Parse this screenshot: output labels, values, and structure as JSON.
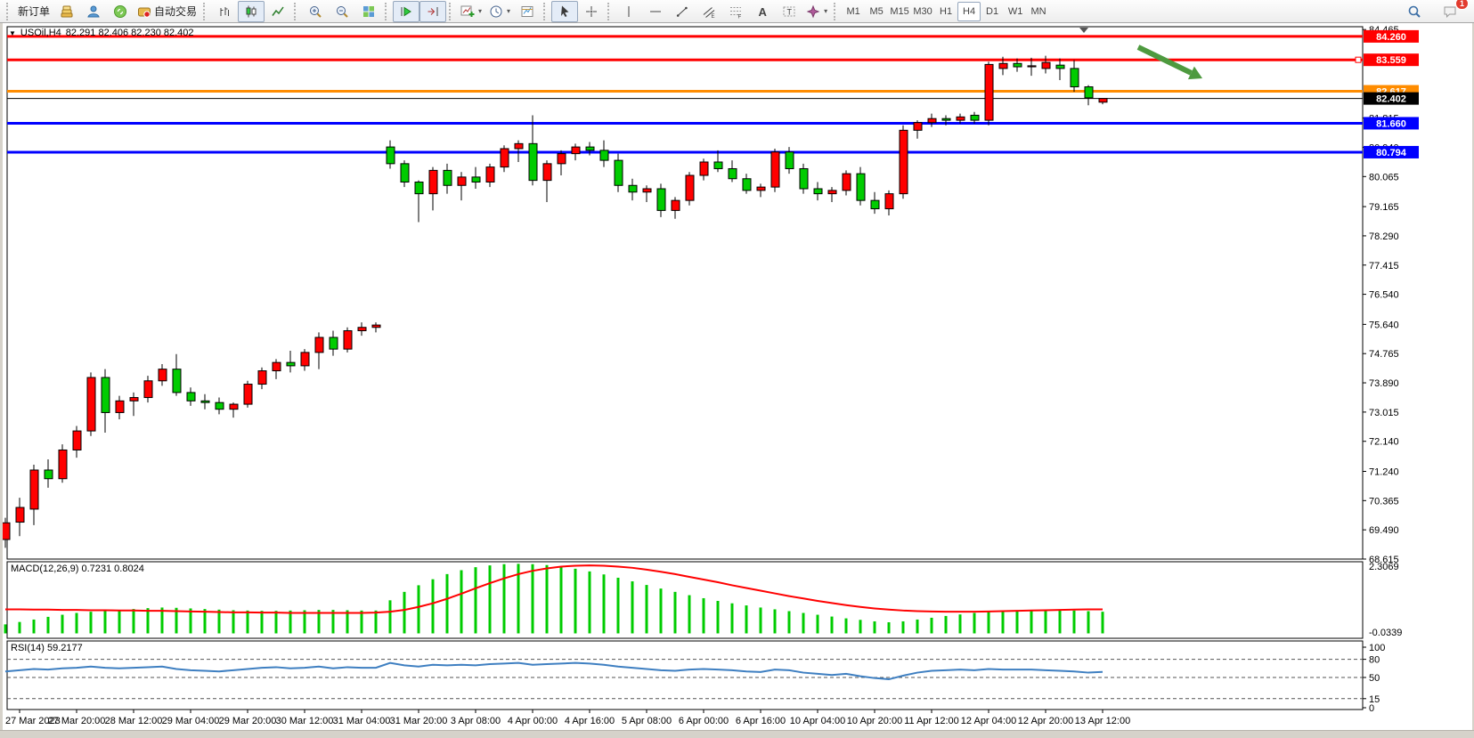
{
  "toolbar": {
    "groups": [
      {
        "items": [
          {
            "name": "new-order-button",
            "label": "新订单"
          },
          {
            "name": "gold-icon-button",
            "icon": "gold"
          },
          {
            "name": "community-button",
            "icon": "community"
          },
          {
            "name": "sounds-button",
            "icon": "sounds"
          },
          {
            "name": "auto-trading-button",
            "icon": "auto-trading",
            "label": "自动交易"
          }
        ]
      },
      {
        "items": [
          {
            "name": "bar-chart-button",
            "icon": "bar-chart"
          },
          {
            "name": "candlestick-chart-button",
            "icon": "candlestick",
            "active": true
          },
          {
            "name": "line-chart-button",
            "icon": "line-chart"
          }
        ]
      },
      {
        "items": [
          {
            "name": "zoom-in-button",
            "icon": "zoom-in"
          },
          {
            "name": "zoom-out-button",
            "icon": "zoom-out"
          },
          {
            "name": "tile-windows-button",
            "icon": "tile"
          }
        ]
      },
      {
        "items": [
          {
            "name": "auto-scroll-button",
            "icon": "auto-scroll",
            "active": true
          },
          {
            "name": "chart-shift-button",
            "icon": "chart-shift",
            "active": true
          }
        ]
      },
      {
        "items": [
          {
            "name": "indicators-button",
            "icon": "indicators",
            "caret": true
          },
          {
            "name": "periods-button",
            "icon": "periods",
            "caret": true
          },
          {
            "name": "templates-button",
            "icon": "template"
          }
        ]
      },
      {
        "items": [
          {
            "name": "cursor-button",
            "icon": "cursor",
            "active": true
          },
          {
            "name": "crosshair-button",
            "icon": "crosshair"
          }
        ]
      },
      {
        "items": [
          {
            "name": "vertical-line-button",
            "icon": "vline"
          },
          {
            "name": "horizontal-line-button",
            "icon": "hline"
          },
          {
            "name": "trendline-button",
            "icon": "trendline"
          },
          {
            "name": "channel-button",
            "icon": "channel"
          },
          {
            "name": "fibonacci-button",
            "icon": "fibo"
          },
          {
            "name": "text-button",
            "icon": "text"
          },
          {
            "name": "label-button",
            "icon": "label"
          },
          {
            "name": "arrows-button",
            "icon": "arrows",
            "caret": true
          }
        ]
      }
    ],
    "timeframes": [
      {
        "label": "M1"
      },
      {
        "label": "M5"
      },
      {
        "label": "M15"
      },
      {
        "label": "M30"
      },
      {
        "label": "H1"
      },
      {
        "label": "H4",
        "active": true
      },
      {
        "label": "D1"
      },
      {
        "label": "W1"
      },
      {
        "label": "MN"
      }
    ],
    "search_icon": "search",
    "notification_count": "1"
  },
  "chart": {
    "title_symbol": "USOil,H4",
    "title_ohlc": "82.291 82.406 82.230 82.402"
  },
  "chart_data": {
    "type": "candlestick",
    "symbol": "USOil",
    "period": "H4",
    "ohlc_display": {
      "open": "82.291",
      "high": "82.406",
      "low": "82.230",
      "close": "82.402"
    },
    "bull_color": "#FF0000",
    "bear_color": "#00CC00",
    "candle_outline": "#000000",
    "y_axis": {
      "visible_range": [
        68.615,
        84.55
      ],
      "ticks": [
        "84.465",
        "81.815",
        "80.940",
        "80.065",
        "79.165",
        "78.290",
        "77.415",
        "76.540",
        "75.640",
        "74.765",
        "73.890",
        "73.015",
        "72.140",
        "71.240",
        "70.365",
        "69.490",
        "68.615"
      ]
    },
    "x_axis": {
      "labels": [
        "27 Mar 2023",
        "27 Mar 20:00",
        "28 Mar 12:00",
        "29 Mar 04:00",
        "29 Mar 20:00",
        "30 Mar 12:00",
        "31 Mar 04:00",
        "31 Mar 20:00",
        "3 Apr 08:00",
        "4 Apr 00:00",
        "4 Apr 16:00",
        "5 Apr 08:00",
        "6 Apr 00:00",
        "6 Apr 16:00",
        "10 Apr 04:00",
        "10 Apr 20:00",
        "11 Apr 12:00",
        "12 Apr 04:00",
        "12 Apr 20:00",
        "13 Apr 12:00"
      ]
    },
    "levels": [
      {
        "price": 84.26,
        "color": "#FF0000",
        "width": 3
      },
      {
        "price": 83.559,
        "color": "#FF0000",
        "width": 3,
        "handle": true
      },
      {
        "price": 82.617,
        "color": "#FF8C00",
        "width": 3
      },
      {
        "price": 81.66,
        "color": "#0000FF",
        "width": 3
      },
      {
        "price": 80.794,
        "color": "#0000FF",
        "width": 3
      }
    ],
    "current_price": {
      "value": 82.402,
      "color": "#000000"
    },
    "candles": [
      [
        69.2,
        69.85,
        68.95,
        69.7
      ],
      [
        69.72,
        70.45,
        69.3,
        70.16
      ],
      [
        70.11,
        71.44,
        69.63,
        71.28
      ],
      [
        71.28,
        71.6,
        70.75,
        71.02
      ],
      [
        71.02,
        72.05,
        70.9,
        71.88
      ],
      [
        71.88,
        72.6,
        71.65,
        72.45
      ],
      [
        72.45,
        74.2,
        72.3,
        74.05
      ],
      [
        74.05,
        74.3,
        72.4,
        73.0
      ],
      [
        73.0,
        73.5,
        72.8,
        73.35
      ],
      [
        73.35,
        73.6,
        72.9,
        73.45
      ],
      [
        73.45,
        74.1,
        73.3,
        73.95
      ],
      [
        73.95,
        74.45,
        73.8,
        74.3
      ],
      [
        74.3,
        74.75,
        73.5,
        73.6
      ],
      [
        73.6,
        73.75,
        73.2,
        73.35
      ],
      [
        73.35,
        73.55,
        73.1,
        73.3
      ],
      [
        73.3,
        73.45,
        72.95,
        73.1
      ],
      [
        73.1,
        73.3,
        72.85,
        73.25
      ],
      [
        73.25,
        73.95,
        73.15,
        73.85
      ],
      [
        73.85,
        74.35,
        73.7,
        74.25
      ],
      [
        74.25,
        74.6,
        74.0,
        74.5
      ],
      [
        74.5,
        74.85,
        74.2,
        74.4
      ],
      [
        74.4,
        74.9,
        74.25,
        74.8
      ],
      [
        74.8,
        75.4,
        74.3,
        75.25
      ],
      [
        75.25,
        75.45,
        74.7,
        74.9
      ],
      [
        74.9,
        75.55,
        74.8,
        75.45
      ],
      [
        75.45,
        75.7,
        75.3,
        75.55
      ],
      [
        75.55,
        75.7,
        75.4,
        75.62
      ],
      [
        80.95,
        81.15,
        80.3,
        80.45
      ],
      [
        80.45,
        80.55,
        79.75,
        79.9
      ],
      [
        79.9,
        79.95,
        78.7,
        79.55
      ],
      [
        79.55,
        80.35,
        79.05,
        80.25
      ],
      [
        80.25,
        80.45,
        79.55,
        79.8
      ],
      [
        79.8,
        80.2,
        79.35,
        80.05
      ],
      [
        80.05,
        80.35,
        79.7,
        79.9
      ],
      [
        79.9,
        80.45,
        79.75,
        80.35
      ],
      [
        80.35,
        81.0,
        80.2,
        80.9
      ],
      [
        80.9,
        81.15,
        80.5,
        81.05
      ],
      [
        81.05,
        81.9,
        79.8,
        79.95
      ],
      [
        79.95,
        80.55,
        79.3,
        80.45
      ],
      [
        80.45,
        80.85,
        80.1,
        80.75
      ],
      [
        80.75,
        81.05,
        80.55,
        80.95
      ],
      [
        80.95,
        81.1,
        80.7,
        80.85
      ],
      [
        80.85,
        81.15,
        80.35,
        80.55
      ],
      [
        80.55,
        80.75,
        79.6,
        79.8
      ],
      [
        79.8,
        80.0,
        79.35,
        79.6
      ],
      [
        79.6,
        79.8,
        79.3,
        79.7
      ],
      [
        79.7,
        79.85,
        78.85,
        79.05
      ],
      [
        79.05,
        79.45,
        78.8,
        79.35
      ],
      [
        79.35,
        80.2,
        79.2,
        80.1
      ],
      [
        80.1,
        80.6,
        79.95,
        80.5
      ],
      [
        80.5,
        80.85,
        80.2,
        80.3
      ],
      [
        80.3,
        80.55,
        79.9,
        80.0
      ],
      [
        80.0,
        80.15,
        79.55,
        79.65
      ],
      [
        79.65,
        79.85,
        79.45,
        79.75
      ],
      [
        79.75,
        80.9,
        79.6,
        80.8
      ],
      [
        80.8,
        80.95,
        80.15,
        80.3
      ],
      [
        80.3,
        80.45,
        79.55,
        79.7
      ],
      [
        79.7,
        79.9,
        79.35,
        79.55
      ],
      [
        79.55,
        79.75,
        79.3,
        79.65
      ],
      [
        79.65,
        80.25,
        79.5,
        80.15
      ],
      [
        80.15,
        80.35,
        79.2,
        79.35
      ],
      [
        79.35,
        79.6,
        78.95,
        79.1
      ],
      [
        79.1,
        79.65,
        78.9,
        79.55
      ],
      [
        79.55,
        81.6,
        79.4,
        81.45
      ],
      [
        81.45,
        81.75,
        81.2,
        81.68
      ],
      [
        81.68,
        81.95,
        81.55,
        81.8
      ],
      [
        81.8,
        81.9,
        81.6,
        81.75
      ],
      [
        81.75,
        81.95,
        81.65,
        81.85
      ],
      [
        81.9,
        82.0,
        81.65,
        81.75
      ],
      [
        81.75,
        83.5,
        81.6,
        83.42
      ],
      [
        83.3,
        83.65,
        83.1,
        83.45
      ],
      [
        83.45,
        83.6,
        83.2,
        83.35
      ],
      [
        83.35,
        83.62,
        83.08,
        83.38
      ],
      [
        83.3,
        83.68,
        83.15,
        83.48
      ],
      [
        83.4,
        83.6,
        82.95,
        83.3
      ],
      [
        83.3,
        83.55,
        82.6,
        82.75
      ],
      [
        82.75,
        82.8,
        82.2,
        82.42
      ],
      [
        82.291,
        82.406,
        82.23,
        82.402
      ]
    ],
    "indicators": {
      "macd": {
        "label": "MACD(12,26,9)",
        "values_text": "0.7231 0.8024",
        "scale_max": 2.3069,
        "scale_min": -0.0339,
        "histogram_color": "#00CC00",
        "signal_color": "#FF0000",
        "histogram": [
          0.3,
          0.38,
          0.46,
          0.55,
          0.62,
          0.68,
          0.72,
          0.75,
          0.78,
          0.81,
          0.84,
          0.86,
          0.85,
          0.83,
          0.81,
          0.79,
          0.77,
          0.76,
          0.75,
          0.75,
          0.76,
          0.77,
          0.78,
          0.78,
          0.77,
          0.76,
          0.76,
          1.1,
          1.38,
          1.6,
          1.8,
          1.97,
          2.1,
          2.2,
          2.26,
          2.3,
          2.31,
          2.3,
          2.27,
          2.22,
          2.15,
          2.06,
          1.96,
          1.85,
          1.73,
          1.61,
          1.49,
          1.38,
          1.27,
          1.17,
          1.08,
          1.0,
          0.93,
          0.86,
          0.8,
          0.74,
          0.68,
          0.62,
          0.56,
          0.5,
          0.45,
          0.4,
          0.37,
          0.4,
          0.46,
          0.52,
          0.58,
          0.63,
          0.68,
          0.72,
          0.75,
          0.77,
          0.78,
          0.78,
          0.77,
          0.76,
          0.74,
          0.72
        ],
        "signal": [
          0.8,
          0.8,
          0.79,
          0.79,
          0.78,
          0.78,
          0.77,
          0.77,
          0.76,
          0.76,
          0.75,
          0.75,
          0.74,
          0.73,
          0.72,
          0.71,
          0.7,
          0.7,
          0.69,
          0.69,
          0.68,
          0.68,
          0.68,
          0.68,
          0.68,
          0.68,
          0.69,
          0.72,
          0.78,
          0.88,
          1.0,
          1.15,
          1.32,
          1.5,
          1.67,
          1.83,
          1.97,
          2.08,
          2.16,
          2.22,
          2.25,
          2.26,
          2.25,
          2.22,
          2.18,
          2.12,
          2.05,
          1.97,
          1.88,
          1.79,
          1.7,
          1.6,
          1.51,
          1.42,
          1.33,
          1.24,
          1.16,
          1.08,
          1.01,
          0.94,
          0.88,
          0.83,
          0.79,
          0.76,
          0.74,
          0.73,
          0.72,
          0.72,
          0.72,
          0.73,
          0.74,
          0.75,
          0.76,
          0.77,
          0.78,
          0.79,
          0.8,
          0.8
        ]
      },
      "rsi": {
        "label": "RSI(14)",
        "value_text": "59.2177",
        "color": "#3E7FC1",
        "scale_ticks": [
          "100",
          "80",
          "50",
          "15",
          "0"
        ],
        "dashed_levels": [
          80,
          50,
          15
        ],
        "line": [
          60,
          62,
          64,
          63,
          65,
          66,
          68,
          66,
          65,
          66,
          67,
          68,
          64,
          62,
          61,
          60,
          62,
          64,
          66,
          67,
          65,
          66,
          68,
          65,
          67,
          66,
          66,
          74,
          70,
          68,
          71,
          70,
          71,
          70,
          72,
          73,
          74,
          71,
          72,
          73,
          74,
          73,
          71,
          68,
          66,
          64,
          62,
          61,
          63,
          64,
          63,
          62,
          60,
          59,
          63,
          62,
          58,
          56,
          54,
          56,
          52,
          49,
          47,
          53,
          58,
          61,
          62,
          63,
          62,
          64,
          63,
          63,
          63,
          62,
          61,
          60,
          58,
          59.2
        ]
      }
    },
    "annotations": [
      {
        "type": "arrow",
        "name": "sell-arrow-annotation",
        "color": "#4E9A3F",
        "from": [
          1278,
          53
        ],
        "to": [
          1350,
          88
        ]
      }
    ]
  }
}
